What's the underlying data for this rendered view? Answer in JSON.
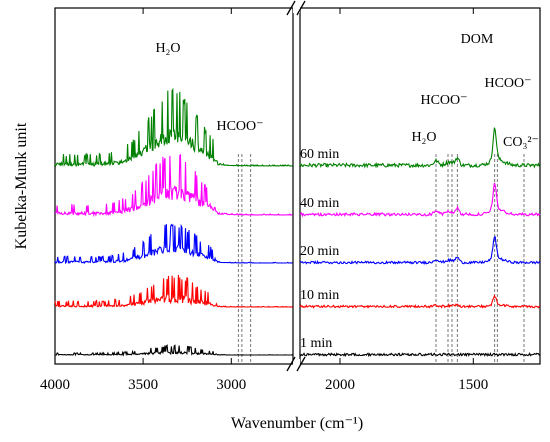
{
  "chart_data": {
    "type": "line",
    "xlabel": "Wavenumber (cm⁻¹)",
    "ylabel": "Kubelka-Munk unit",
    "x_axis": {
      "reversed": true,
      "broken": true,
      "segments": [
        [
          4000,
          2650
        ],
        [
          2150,
          1250
        ]
      ],
      "ticks": [
        4000,
        3500,
        3000,
        2000,
        1500
      ]
    },
    "y_axis": {
      "ticks": false
    },
    "legend": "none",
    "grid": false,
    "series": [
      {
        "name": "1 min",
        "color": "#000000",
        "offset": 0,
        "amp_left": 0.5,
        "amp_right": 0.3,
        "hump": 0.1,
        "dom": 0.0
      },
      {
        "name": "10 min",
        "color": "#ff0000",
        "offset": 1,
        "amp_left": 1.6,
        "amp_right": 0.3,
        "hump": 0.4,
        "dom": 0.35
      },
      {
        "name": "20 min",
        "color": "#0000ff",
        "offset": 2,
        "amp_left": 1.7,
        "amp_right": 0.3,
        "hump": 1.0,
        "dom": 0.9
      },
      {
        "name": "40 min",
        "color": "#ff00ff",
        "offset": 3,
        "amp_left": 2.8,
        "amp_right": 0.35,
        "hump": 1.5,
        "dom": 1.1
      },
      {
        "name": "60 min",
        "color": "#008000",
        "offset": 4,
        "amp_left": 3.0,
        "amp_right": 0.45,
        "hump": 2.2,
        "dom": 1.3
      }
    ],
    "reference_lines": [
      2960,
      2940,
      2890,
      1640,
      1595,
      1580,
      1560,
      1420,
      1410,
      1310
    ],
    "annotations": [
      {
        "text": "H₂O",
        "x": 3330
      },
      {
        "text": "HCOO⁻",
        "x": 2900
      },
      {
        "text": "H₂O",
        "x": 1640
      },
      {
        "text": "HCOO⁻",
        "x": 1575
      },
      {
        "text": "DOM",
        "x": 1420
      },
      {
        "text": "HCOO⁻",
        "x": 1305
      },
      {
        "text": "CO₃²⁻",
        "x": 1280
      }
    ]
  }
}
